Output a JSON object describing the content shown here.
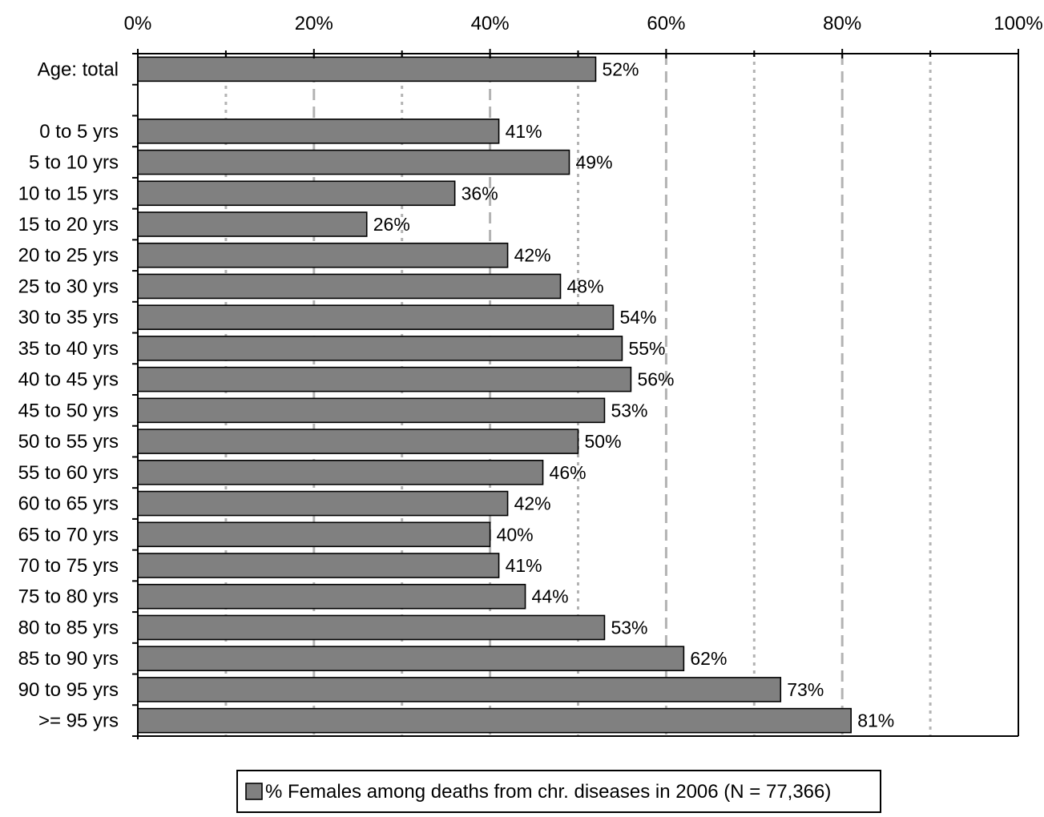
{
  "chart_data": {
    "type": "bar",
    "orientation": "horizontal",
    "categories": [
      "Age: total",
      "",
      "0 to 5 yrs",
      "5 to 10 yrs",
      "10 to 15 yrs",
      "15 to 20 yrs",
      "20 to 25 yrs",
      "25 to 30 yrs",
      "30 to 35 yrs",
      "35 to 40 yrs",
      "40 to 45 yrs",
      "45 to 50 yrs",
      "50 to 55 yrs",
      "55 to 60 yrs",
      "60 to 65 yrs",
      "65 to 70 yrs",
      "70 to 75 yrs",
      "75 to 80 yrs",
      "80 to 85 yrs",
      "85 to 90 yrs",
      "90 to 95 yrs",
      ">= 95 yrs"
    ],
    "series": [
      {
        "name": "% Females among deaths from chr. diseases in 2006 (N = 77,366)",
        "values": [
          52,
          null,
          41,
          49,
          36,
          26,
          42,
          48,
          54,
          55,
          56,
          53,
          50,
          46,
          42,
          40,
          41,
          44,
          53,
          62,
          73,
          81
        ],
        "labels": [
          "52%",
          "",
          "41%",
          "49%",
          "36%",
          "26%",
          "42%",
          "48%",
          "54%",
          "55%",
          "56%",
          "53%",
          "50%",
          "46%",
          "42%",
          "40%",
          "41%",
          "44%",
          "53%",
          "62%",
          "73%",
          "81%"
        ],
        "color": "#808080"
      }
    ],
    "x_ticks": [
      "0%",
      "20%",
      "40%",
      "60%",
      "80%",
      "100%"
    ],
    "xlim": [
      0,
      100
    ],
    "x_axis_position": "top",
    "grid": "vertical, dashed at 20% steps and dotted at 10% midpoints",
    "legend": "bottom",
    "title": "",
    "xlabel": "",
    "ylabel": ""
  },
  "colors": {
    "bar_fill": "#808080",
    "bar_stroke": "#000000",
    "grid_major": "#b3b3b3",
    "grid_minor": "#b3b3b3"
  }
}
